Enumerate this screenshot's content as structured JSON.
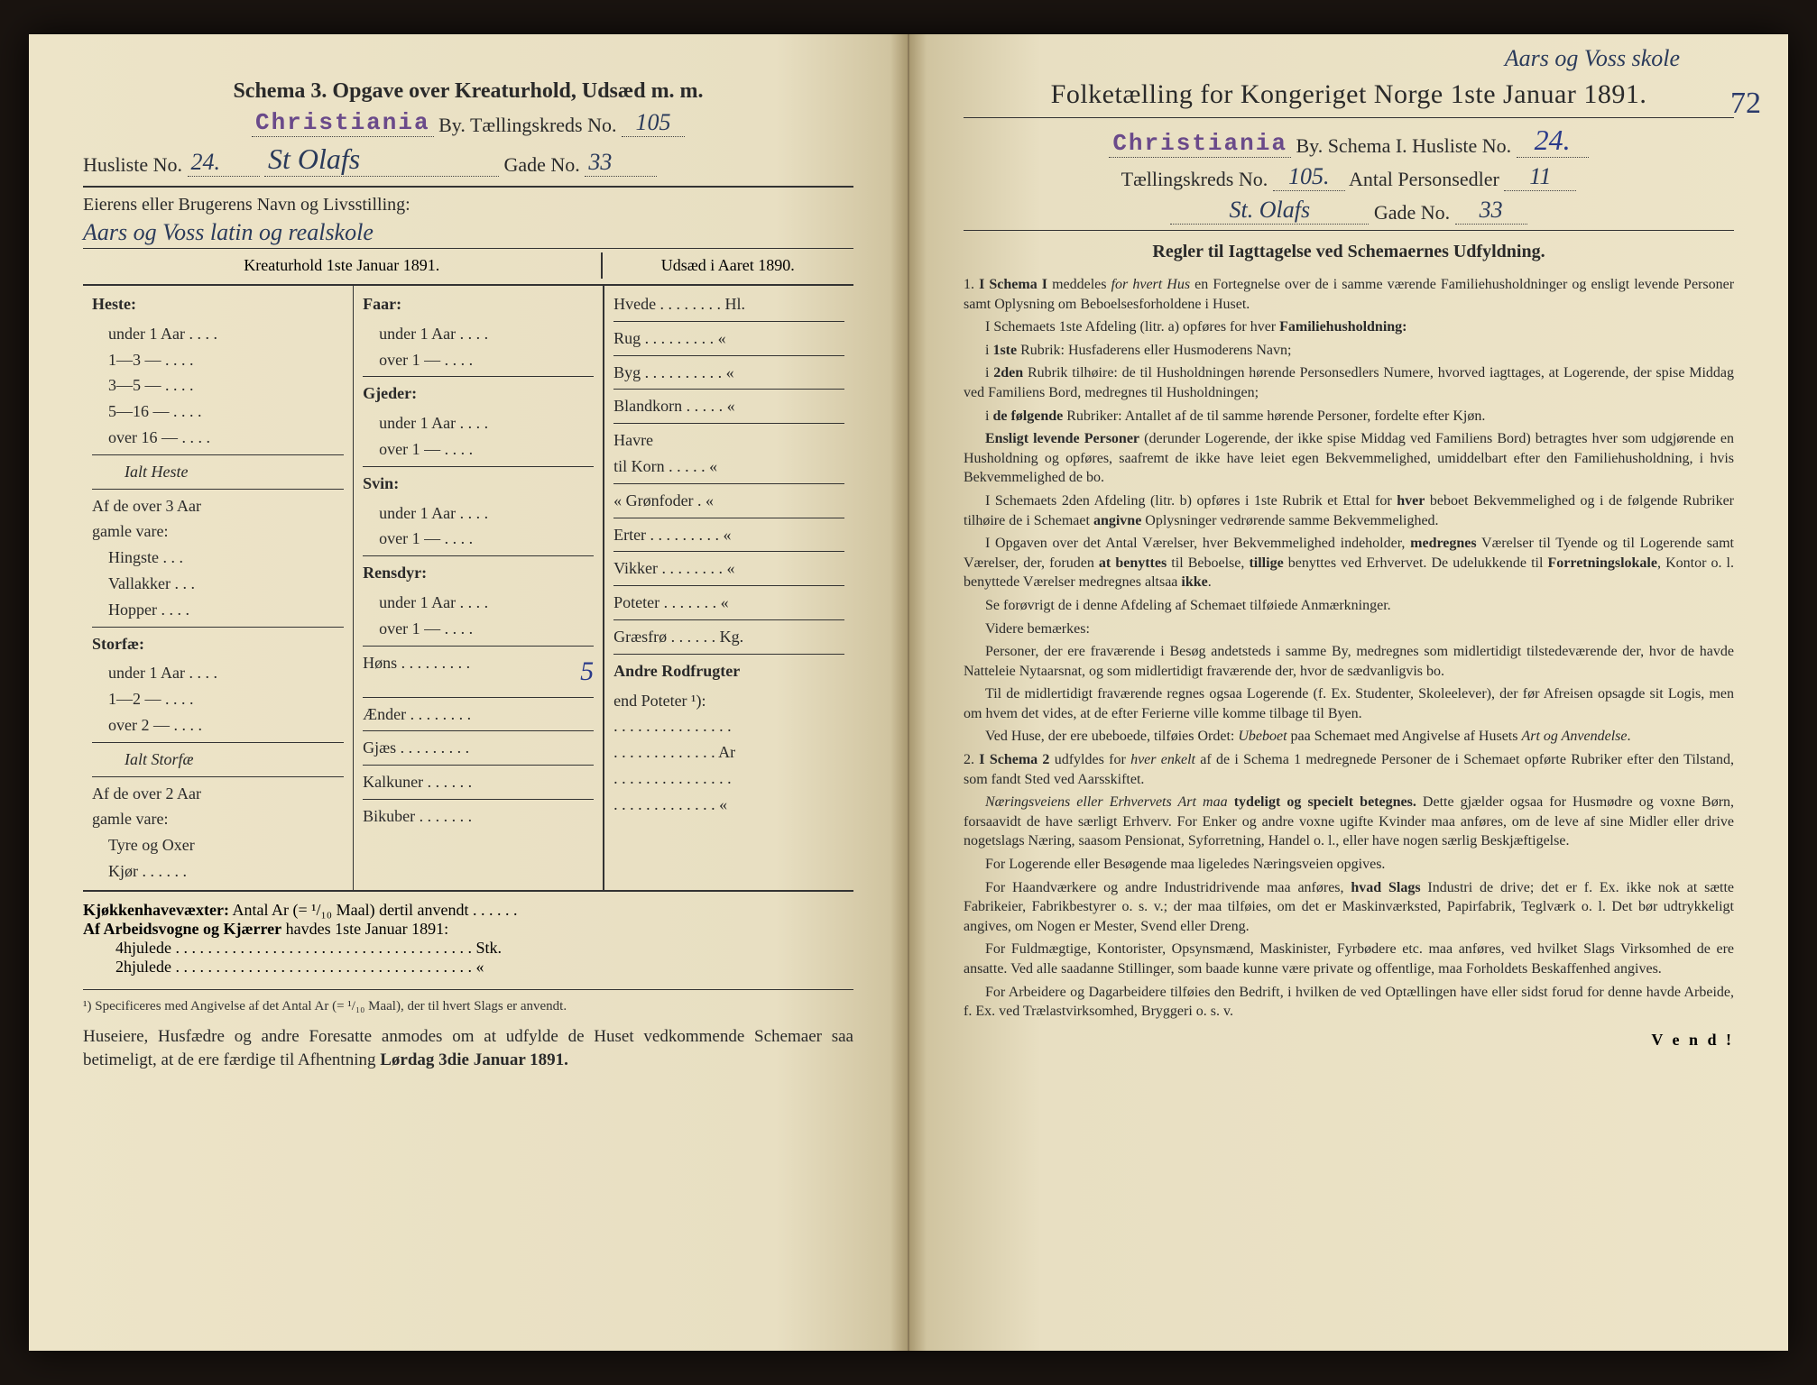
{
  "left": {
    "schema_title": "Schema 3.  Opgave over Kreaturhold, Udsæd m. m.",
    "city_stamp": "Christiania",
    "by_label": "By.  Tællingskreds No.",
    "kreds_no": "105",
    "husliste_label": "Husliste No.",
    "husliste_no": "24.",
    "street": "St Olafs",
    "gade_label": "Gade No.",
    "gade_no": "33",
    "owner_label": "Eierens eller Brugerens Navn og Livsstilling:",
    "owner_value": "Aars og Voss latin og realskole",
    "col1_title": "Kreaturhold 1ste Januar 1891.",
    "col3_title": "Udsæd i Aaret 1890.",
    "heste": {
      "head": "Heste:",
      "rows": [
        "under 1 Aar . . . .",
        "1—3   —   . . . .",
        "3—5   —   . . . .",
        "5—16  —   . . . .",
        "over 16 —   . . . ."
      ],
      "ialt": "Ialt Heste",
      "sub_head": "Af de over 3 Aar",
      "sub_head2": "gamle vare:",
      "subs": [
        "Hingste . . .",
        "Vallakker . . .",
        "Hopper . . . ."
      ]
    },
    "storfae": {
      "head": "Storfæ:",
      "rows": [
        "under 1 Aar . . . .",
        "1—2   —   . . . .",
        "over 2   —   . . . ."
      ],
      "ialt": "Ialt Storfæ",
      "sub_head": "Af de over 2 Aar",
      "sub_head2": "gamle vare:",
      "subs": [
        "Tyre og Oxer",
        "Kjør . . . . . ."
      ]
    },
    "col2": {
      "faar_head": "Faar:",
      "faar_rows": [
        "under 1 Aar . . . .",
        "over 1   —   . . . ."
      ],
      "gjeder_head": "Gjeder:",
      "gjeder_rows": [
        "under 1 Aar . . . .",
        "over 1   —   . . . ."
      ],
      "svin_head": "Svin:",
      "svin_rows": [
        "under 1 Aar . . . .",
        "over 1   —   . . . ."
      ],
      "rensdyr_head": "Rensdyr:",
      "rensdyr_rows": [
        "under 1 Aar . . . .",
        "over 1   —   . . . ."
      ],
      "hons": "Høns . . . . . . . . .",
      "hons_val": "5",
      "aender": "Ænder . . . . . . . .",
      "gjaes": "Gjæs . . . . . . . . .",
      "kalkuner": "Kalkuner . . . . . .",
      "bikuber": "Bikuber . . . . . . ."
    },
    "col3": {
      "rows": [
        "Hvede . . . . . . . . Hl.",
        "Rug  . . . . . . . . .  «",
        "Byg . . . . . . . . . . «",
        "Blandkorn . . . . .  «",
        "Havre",
        "   til Korn . . . . .  «",
        "   « Grønfoder .  «",
        "Erter . . . . . . . . .  «",
        "Vikker . . . . . . . .  «",
        "Poteter . . . . . . .  «",
        "Græsfrø . . . . . . Kg.",
        "Andre Rodfrugter",
        "   end Poteter ¹):",
        ". . . . . . . . . . . . . . .",
        ". . . . . . . . . . . . . Ar",
        ". . . . . . . . . . . . . . .",
        ". . . . . . . . . . . . .  «"
      ]
    },
    "kjokken": "Kjøkkenhavevæxter:  Antal Ar (= ¹/₁₀ Maal) dertil anvendt . . . . . .",
    "arbeids_label": "Af Arbeidsvogne og Kjærrer havdes 1ste Januar 1891:",
    "hjul4": "4hjulede . . . . . . . . . . . . . . . . . . . . . . . . . . . . . . . . . . . . . Stk.",
    "hjul2": "2hjulede . . . . . . . . . . . . . . . . . . . . . . . . . . . . . . . . . . . . .   «",
    "footnote": "¹) Specificeres med Angivelse af det Antal Ar (= ¹/₁₀ Maal), der til hvert Slags er anvendt.",
    "footer": "Huseiere, Husfædre og andre Foresatte anmodes om at udfylde de Huset vedkommende Schemaer saa betimeligt, at de ere færdige til Afhentning Lørdag 3die Januar 1891."
  },
  "right": {
    "top_annot": "Aars og Voss skole",
    "right_annot": "72",
    "title": "Folketælling for Kongeriget Norge 1ste Januar 1891.",
    "city_stamp": "Christiania",
    "by_label": "By.  Schema I.  Husliste No.",
    "husliste_no": "24.",
    "kreds_label": "Tællingskreds No.",
    "kreds_no": "105.",
    "persons_label": "Antal Personsedler",
    "persons_no": "11",
    "street": "St. Olafs",
    "gade_label": "Gade No.",
    "gade_no": "33",
    "rules_title": "Regler til Iagttagelse ved Schemaernes Udfyldning.",
    "rules": [
      "1. <b>I Schema I</b> meddeles <i>for hvert Hus</i> en Fortegnelse over de i samme værende Familiehusholdninger og ensligt levende Personer samt Oplysning om Beboelsesforholdene i Huset.",
      "I Schemaets 1ste Afdeling (litr. a) opføres for hver <b>Familiehusholdning:</b>",
      "i <b>1ste</b> Rubrik: Husfaderens eller Husmoderens Navn;",
      "i <b>2den</b> Rubrik tilhøire: de til Husholdningen hørende Personsedlers Numere, hvorved iagttages, at Logerende, der spise Middag ved Familiens Bord, medregnes til Husholdningen;",
      "i <b>de følgende</b> Rubriker: Antallet af de til samme hørende Personer, fordelte efter Kjøn.",
      "<b>Ensligt levende Personer</b> (derunder Logerende, der ikke spise Middag ved Familiens Bord) betragtes hver som udgjørende en Husholdning og opføres, saafremt de ikke have leiet egen Bekvemmelighed, umiddelbart efter den Familiehusholdning, i hvis Bekvemmelighed de bo.",
      "I Schemaets 2den Afdeling (litr. b) opføres i 1ste Rubrik et Ettal for <b>hver</b> beboet Bekvemmelighed og i de følgende Rubriker tilhøire de i Schemaet <b>angivne</b> Oplysninger vedrørende samme Bekvemmelighed.",
      "I Opgaven over det Antal Værelser, hver Bekvemmelighed indeholder, <b>medregnes</b> Værelser til Tyende og til Logerende samt Værelser, der, foruden <b>at benyttes</b> til Beboelse, <b>tillige</b> benyttes ved Erhvervet. De udelukkende til <b>Forretningslokale</b>, Kontor o. l. benyttede Værelser medregnes altsaa <b>ikke</b>.",
      "Se forøvrigt de i denne Afdeling af Schemaet tilføiede Anmærkninger.",
      "Videre bemærkes:",
      "Personer, der ere fraværende i Besøg andetsteds i samme By, medregnes som midlertidigt tilstedeværende der, hvor de havde Natteleie Nytaarsnat, og som midlertidigt fraværende der, hvor de sædvanligvis bo.",
      "Til de midlertidigt fraværende regnes ogsaa Logerende (f. Ex. Studenter, Skoleelever), der før Afreisen opsagde sit Logis, men om hvem det vides, at de efter Ferierne ville komme tilbage til Byen.",
      "Ved Huse, der ere ubeboede, tilføies Ordet: <i>Ubeboet</i> paa Schemaet med Angivelse af Husets <i>Art og Anvendelse</i>.",
      "2. <b>I Schema 2</b> udfyldes for <i>hver enkelt</i> af de i Schema 1 medregnede Personer de i Schemaet opførte Rubriker efter den Tilstand, som fandt Sted ved Aarsskiftet.",
      "<i>Næringsveiens eller Erhvervets Art maa</i> <b>tydeligt og specielt betegnes.</b> Dette gjælder ogsaa for Husmødre og voxne Børn, forsaavidt de have særligt Erhverv. For Enker og andre voxne ugifte Kvinder maa anføres, om de leve af sine Midler eller drive nogetslags Næring, saasom Pensionat, Syforretning, Handel o. l., eller have nogen særlig Beskjæftigelse.",
      "For Logerende eller Besøgende maa ligeledes Næringsveien opgives.",
      "For Haandværkere og andre Industridrivende maa anføres, <b>hvad Slags</b> Industri de drive; det er f. Ex. ikke nok at sætte Fabrikeier, Fabrikbestyrer o. s. v.; der maa tilføies, om det er Maskinværksted, Papirfabrik, Teglværk o. l. Det bør udtrykkeligt angives, om Nogen er Mester, Svend eller Dreng.",
      "For Fuldmægtige, Kontorister, Opsynsmænd, Maskinister, Fyrbødere etc. maa anføres, ved hvilket Slags Virksomhed de ere ansatte. Ved alle saadanne Stillinger, som baade kunne være private og offentlige, maa Forholdets Beskaffenhed angives.",
      "For Arbeidere og Dagarbeidere tilføies den Bedrift, i hvilken de ved Optællingen have eller sidst forud for denne havde Arbeide, f. Ex. ved Trælastvirksomhed, Bryggeri o. s. v."
    ],
    "vend": "V e n d !"
  }
}
